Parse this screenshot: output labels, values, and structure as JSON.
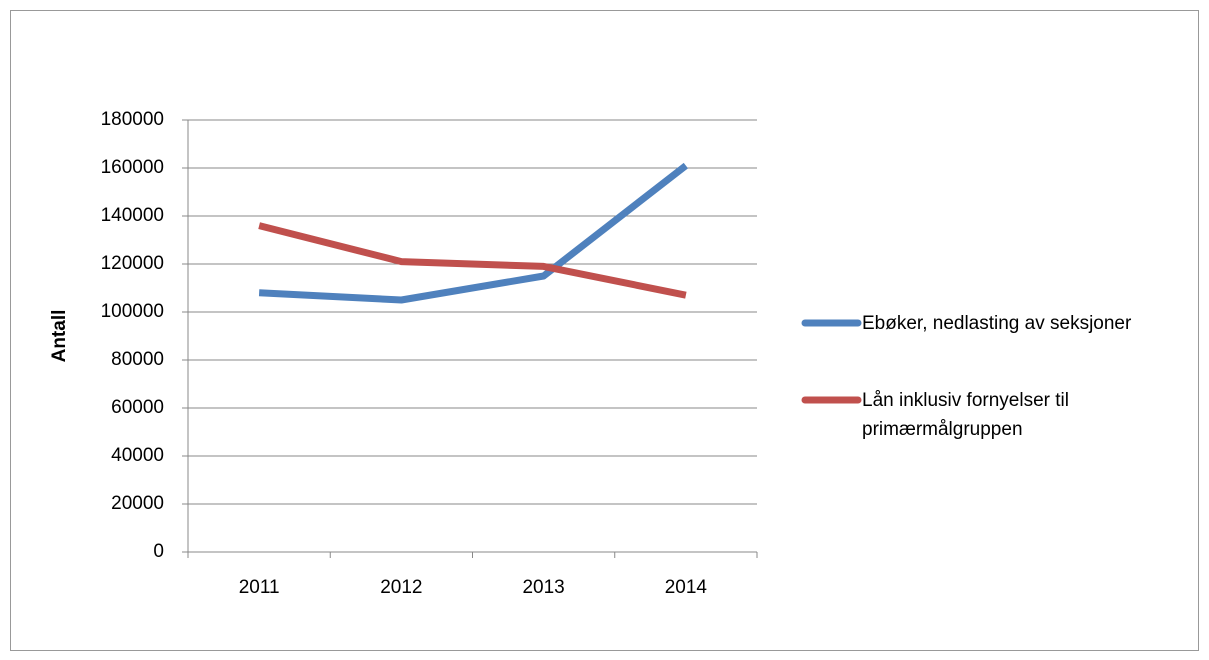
{
  "chart_data": {
    "type": "line",
    "y_label": "Antall",
    "categories": [
      "2011",
      "2012",
      "2013",
      "2014"
    ],
    "series": [
      {
        "name": "Ebøker, nedlasting av seksjoner",
        "color": "#4f81bd",
        "values": [
          108000,
          105000,
          115000,
          161000
        ]
      },
      {
        "name": "Lån inklusiv fornyelser til primærmålgruppen",
        "color": "#c0504d",
        "values": [
          136000,
          121000,
          119000,
          107000
        ]
      }
    ],
    "ylim": [
      0,
      180000
    ],
    "yticks": [
      0,
      20000,
      40000,
      60000,
      80000,
      100000,
      120000,
      140000,
      160000,
      180000
    ],
    "grid": true,
    "legend": "right"
  }
}
